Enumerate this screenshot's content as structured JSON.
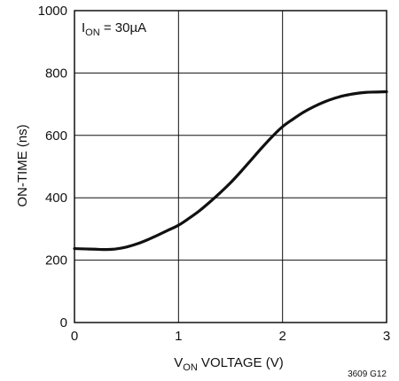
{
  "chart_data": {
    "type": "line",
    "title": "",
    "xlabel": {
      "prefix": "V",
      "subscript": "ON",
      "suffix": " VOLTAGE (V)"
    },
    "ylabel": "ON-TIME (ns)",
    "xlim": [
      0,
      3
    ],
    "ylim": [
      0,
      1000
    ],
    "x_ticks": [
      "0",
      "1",
      "2",
      "3"
    ],
    "y_ticks": [
      "0",
      "200",
      "400",
      "600",
      "800",
      "1000"
    ],
    "grid": true,
    "annotation": {
      "prefix": "I",
      "subscript": "ON",
      "suffix": " = 30µA"
    },
    "footnote": "3609 G12",
    "series": [
      {
        "points": [
          [
            0.0,
            237
          ],
          [
            0.1,
            236
          ],
          [
            0.2,
            235
          ],
          [
            0.3,
            234
          ],
          [
            0.4,
            236
          ],
          [
            0.5,
            242
          ],
          [
            0.6,
            252
          ],
          [
            0.7,
            265
          ],
          [
            0.8,
            280
          ],
          [
            0.9,
            296
          ],
          [
            1.0,
            312
          ],
          [
            1.1,
            334
          ],
          [
            1.2,
            358
          ],
          [
            1.3,
            386
          ],
          [
            1.4,
            416
          ],
          [
            1.5,
            448
          ],
          [
            1.6,
            484
          ],
          [
            1.7,
            522
          ],
          [
            1.8,
            560
          ],
          [
            1.9,
            596
          ],
          [
            2.0,
            628
          ],
          [
            2.1,
            652
          ],
          [
            2.2,
            674
          ],
          [
            2.3,
            692
          ],
          [
            2.4,
            707
          ],
          [
            2.5,
            719
          ],
          [
            2.6,
            728
          ],
          [
            2.7,
            734
          ],
          [
            2.8,
            738
          ],
          [
            2.9,
            739
          ],
          [
            3.0,
            740
          ]
        ]
      }
    ]
  }
}
